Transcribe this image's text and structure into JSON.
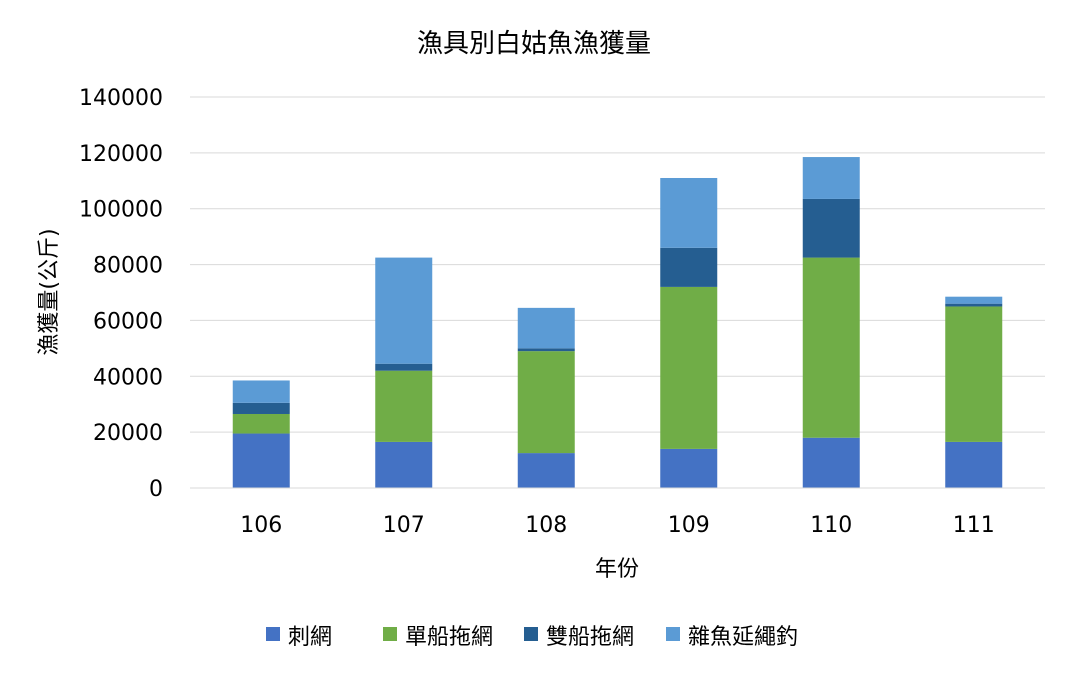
{
  "chart_data": {
    "type": "bar",
    "stacked": true,
    "title": "漁具別白姑魚漁獲量",
    "xlabel": "年份",
    "ylabel": "漁獲量(公斤)",
    "categories": [
      "106",
      "107",
      "108",
      "109",
      "110",
      "111"
    ],
    "ylim": [
      0,
      140000
    ],
    "yticks": [
      "0",
      "20000",
      "40000",
      "60000",
      "80000",
      "100000",
      "120000",
      "140000"
    ],
    "grid": true,
    "legend_position": "bottom",
    "series": [
      {
        "name": "刺網",
        "color": "#4472C4",
        "values": [
          19500,
          16500,
          12500,
          14000,
          18000,
          16500
        ]
      },
      {
        "name": "單船拖網",
        "color": "#70AD47",
        "values": [
          7000,
          25500,
          36500,
          58000,
          64500,
          48500
        ]
      },
      {
        "name": "雙船拖網",
        "color": "#255E91",
        "values": [
          4000,
          2500,
          1000,
          14000,
          21000,
          1000
        ]
      },
      {
        "name": "雜魚延繩釣",
        "color": "#5B9BD5",
        "values": [
          8000,
          38000,
          14500,
          25000,
          15000,
          2500
        ]
      }
    ]
  }
}
